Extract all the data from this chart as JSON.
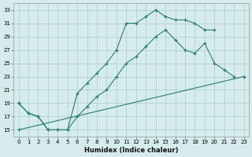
{
  "xlabel": "Humidex (Indice chaleur)",
  "xlim": [
    -0.5,
    23.5
  ],
  "ylim": [
    14,
    34
  ],
  "yticks": [
    15,
    17,
    19,
    21,
    23,
    25,
    27,
    29,
    31,
    33
  ],
  "xticks": [
    0,
    1,
    2,
    3,
    4,
    5,
    6,
    7,
    8,
    9,
    10,
    11,
    12,
    13,
    14,
    15,
    16,
    17,
    18,
    19,
    20,
    21,
    22,
    23
  ],
  "bg_color": "#d6ecec",
  "grid_color": "#b0d0d0",
  "line_color": "#2d7a6e",
  "lines": [
    {
      "x": [
        0,
        1,
        2,
        3,
        4,
        5,
        6,
        7,
        8,
        9,
        10,
        11,
        12,
        13,
        14,
        15,
        16,
        17,
        18,
        19,
        20
      ],
      "y": [
        19,
        17.5,
        17,
        15,
        15,
        15,
        20.5,
        22,
        23.5,
        25,
        27,
        31,
        31,
        32,
        33,
        32,
        31.5,
        31.5,
        31,
        30,
        30
      ]
    },
    {
      "x": [
        0,
        1,
        2,
        3,
        4,
        5,
        6,
        7,
        8,
        9,
        10,
        11,
        12,
        13,
        14,
        15,
        16,
        17,
        18,
        19,
        20,
        21,
        22
      ],
      "y": [
        19,
        17.5,
        17,
        15,
        15,
        15,
        17,
        18.5,
        20,
        21,
        23,
        25,
        26,
        27.5,
        29,
        30,
        28.5,
        27,
        26.5,
        28,
        25,
        24,
        23
      ]
    },
    {
      "x": [
        0,
        23
      ],
      "y": [
        15,
        23
      ]
    }
  ]
}
